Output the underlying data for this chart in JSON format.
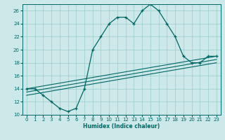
{
  "xlabel": "Humidex (Indice chaleur)",
  "bg_color": "#cce8e8",
  "grid_color": "#99cccc",
  "line_color": "#006666",
  "xlim": [
    -0.5,
    23.5
  ],
  "ylim": [
    10,
    27
  ],
  "xticks": [
    0,
    1,
    2,
    3,
    4,
    5,
    6,
    7,
    8,
    9,
    10,
    11,
    12,
    13,
    14,
    15,
    16,
    17,
    18,
    19,
    20,
    21,
    22,
    23
  ],
  "yticks": [
    10,
    12,
    14,
    16,
    18,
    20,
    22,
    24,
    26
  ],
  "main_x": [
    0,
    1,
    2,
    3,
    4,
    5,
    6,
    7,
    8,
    9,
    10,
    11,
    12,
    13,
    14,
    15,
    16,
    17,
    18,
    19,
    20,
    21,
    22,
    23
  ],
  "main_y": [
    14,
    14,
    13,
    12,
    11,
    10.5,
    11,
    14,
    20,
    22,
    24,
    25,
    25,
    24,
    26,
    27,
    26,
    24,
    22,
    19,
    18,
    18,
    19,
    19
  ],
  "line1_x": [
    0,
    23
  ],
  "line1_y": [
    14.0,
    19.0
  ],
  "line2_x": [
    0,
    23
  ],
  "line2_y": [
    13.5,
    18.5
  ],
  "line3_x": [
    0,
    23
  ],
  "line3_y": [
    13.0,
    18.0
  ]
}
